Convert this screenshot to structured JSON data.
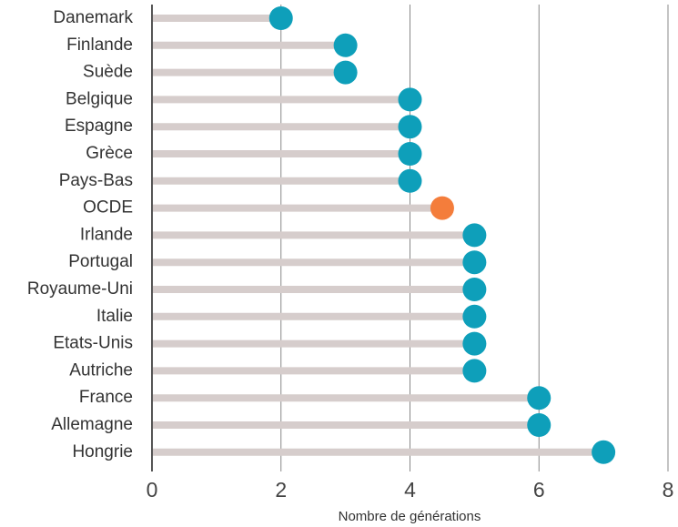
{
  "chart_data": {
    "type": "lollipop",
    "categories": [
      "Danemark",
      "Finlande",
      "Suède",
      "Belgique",
      "Espagne",
      "Grèce",
      "Pays-Bas",
      "OCDE",
      "Irlande",
      "Portugal",
      "Royaume-Uni",
      "Italie",
      "Etats-Unis",
      "Autriche",
      "France",
      "Allemagne",
      "Hongrie"
    ],
    "values": [
      2,
      3,
      3,
      4,
      4,
      4,
      4,
      4.5,
      5,
      5,
      5,
      5,
      5,
      5,
      6,
      6,
      7
    ],
    "colors": [
      "#0e9fba",
      "#0e9fba",
      "#0e9fba",
      "#0e9fba",
      "#0e9fba",
      "#0e9fba",
      "#0e9fba",
      "#f47d3b",
      "#0e9fba",
      "#0e9fba",
      "#0e9fba",
      "#0e9fba",
      "#0e9fba",
      "#0e9fba",
      "#0e9fba",
      "#0e9fba",
      "#0e9fba"
    ],
    "stem_color": "#d6cdcc",
    "xlabel": "Nombre de générations",
    "xlim": [
      0,
      8
    ],
    "xticks": [
      0,
      2,
      4,
      6,
      8
    ],
    "grid": true
  }
}
